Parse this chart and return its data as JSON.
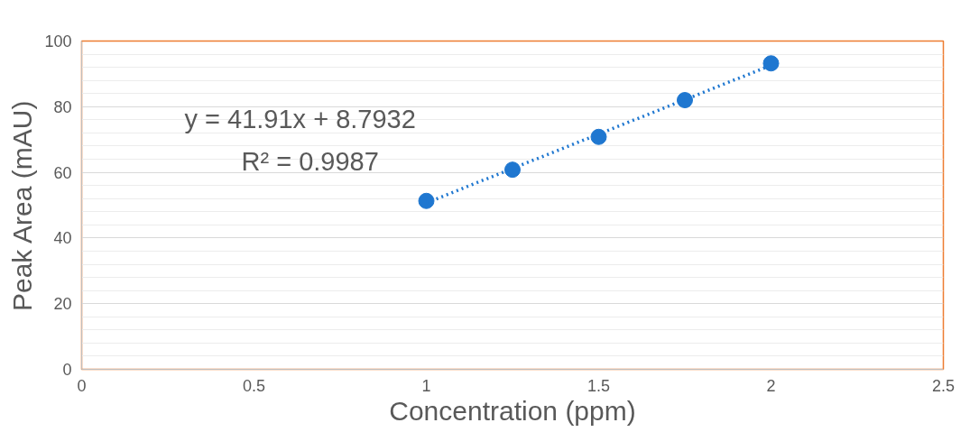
{
  "chart_data": {
    "type": "scatter",
    "xlabel": "Concentration (ppm)",
    "ylabel": "Peak Area (mAU)",
    "xlim": [
      0,
      2.5
    ],
    "xticks": [
      0,
      0.5,
      1,
      1.5,
      2,
      2.5
    ],
    "ylim": [
      0,
      100
    ],
    "yticks": [
      0,
      20,
      40,
      60,
      80,
      100
    ],
    "grid": "y",
    "annotations": [
      "y = 41.91x + 8.7932",
      "R² = 0.9987"
    ],
    "series": [
      {
        "color": "#1f77d0",
        "marker": "circle",
        "x": [
          1,
          1.25,
          1.5,
          1.75,
          2
        ],
        "values": [
          51.3,
          60.8,
          70.8,
          82.0,
          93.2
        ]
      },
      {
        "type": "line",
        "color": "#1f77d0",
        "line_style": "dotted",
        "marker": "none",
        "x": [
          1,
          2
        ],
        "values": [
          50.7,
          92.6
        ]
      }
    ]
  }
}
